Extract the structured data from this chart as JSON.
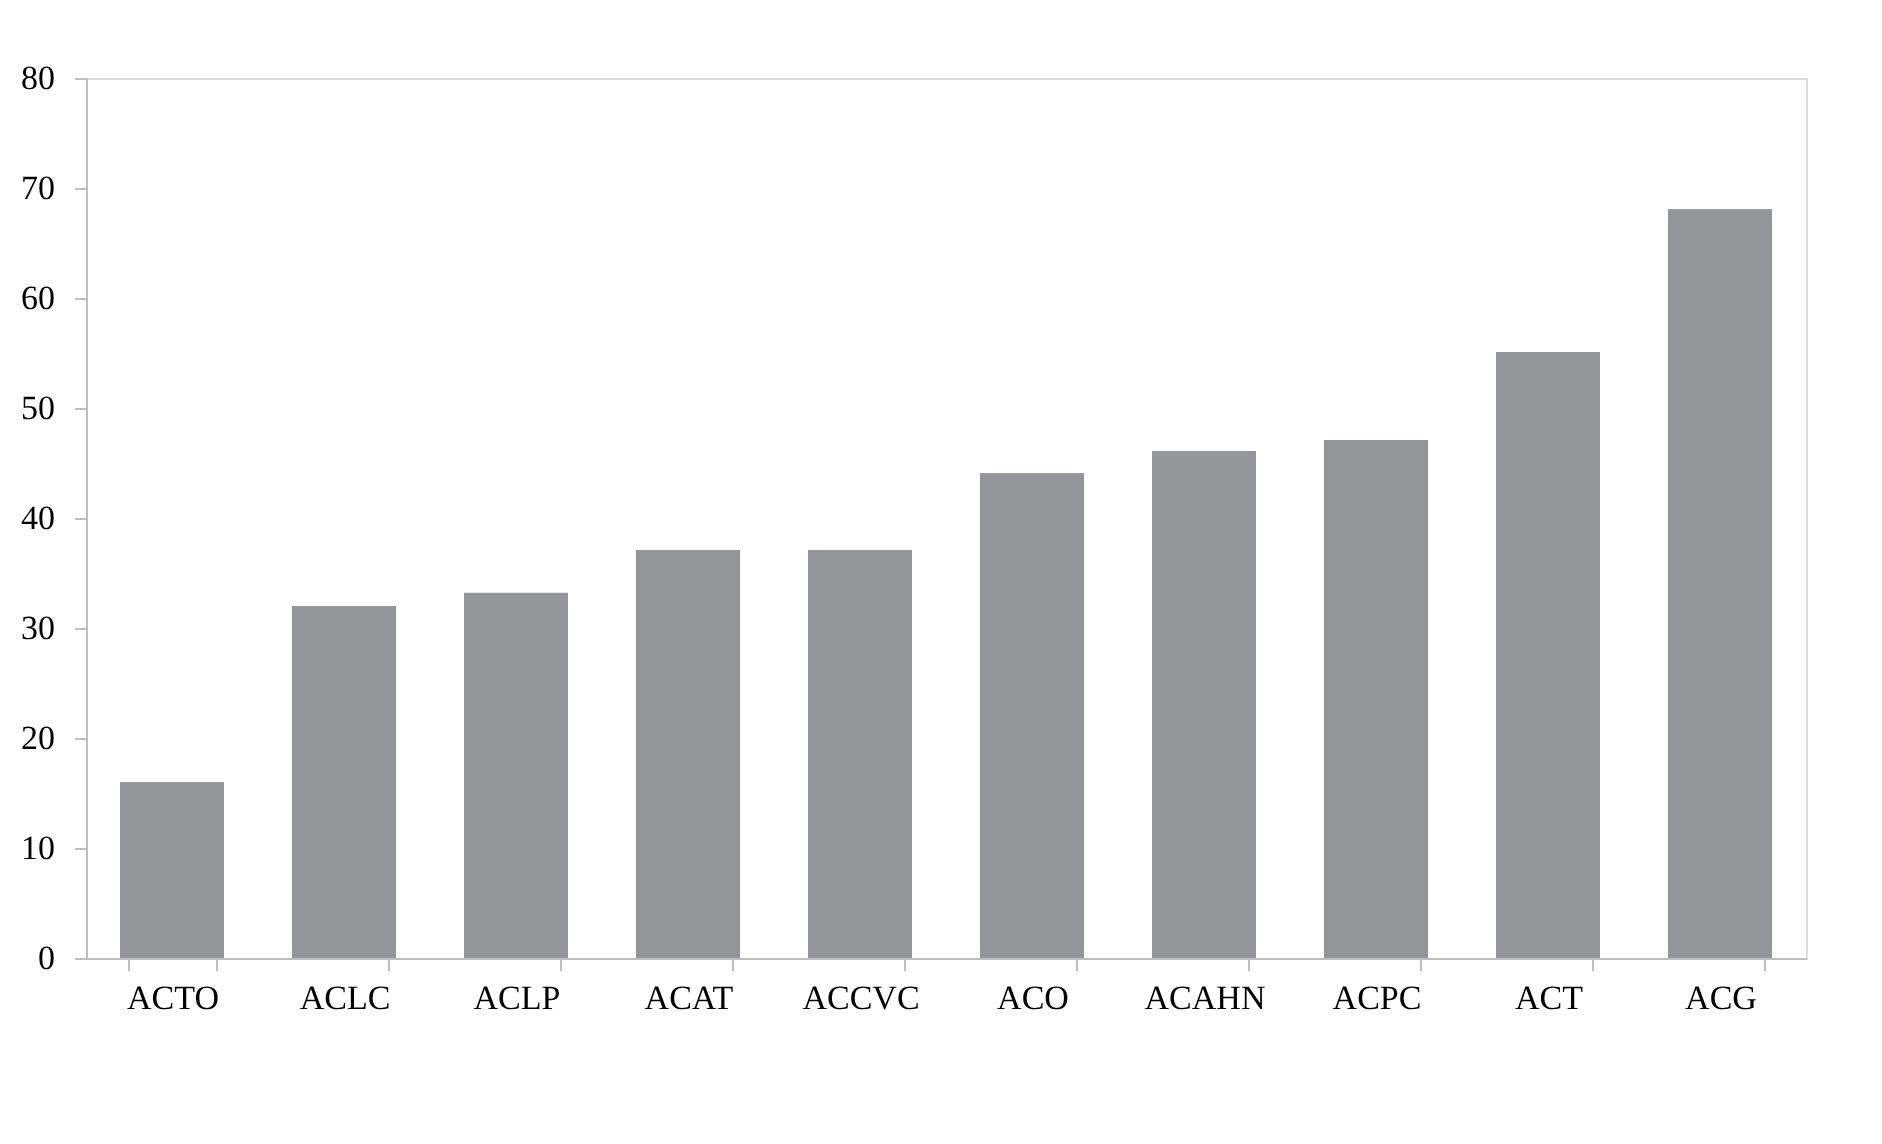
{
  "chart_data": {
    "type": "bar",
    "categories": [
      "ACTO",
      "ACLC",
      "ACLP",
      "ACAT",
      "ACCVC",
      "ACO",
      "ACAHN",
      "ACPC",
      "ACT",
      "ACG"
    ],
    "values": [
      16,
      32,
      33.2,
      37.1,
      37.1,
      44.1,
      46.1,
      47.1,
      55.1,
      68.1
    ],
    "color": "#949599",
    "ylim": [
      0,
      80
    ],
    "yticks": [
      0,
      10,
      20,
      30,
      40,
      50,
      60,
      70,
      80
    ],
    "grid": false
  }
}
